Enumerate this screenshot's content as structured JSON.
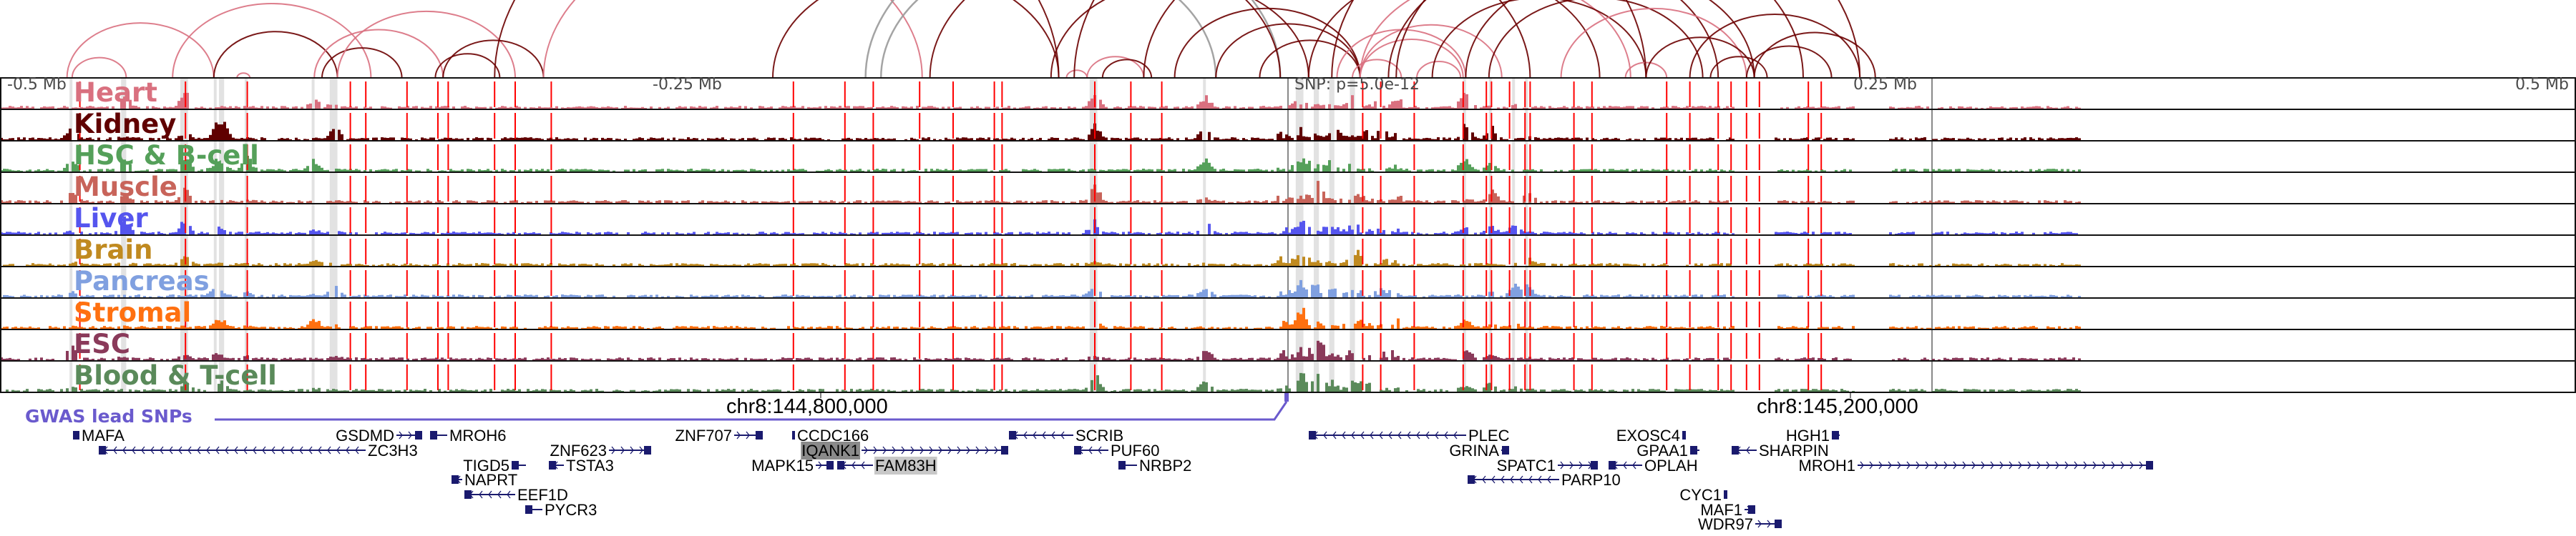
{
  "axis": {
    "ticks": [
      "-0.5 Mb",
      "-0.25 Mb",
      "0.25 Mb",
      "0.5 Mb"
    ],
    "snp_label": "SNP: p=5.0e-12"
  },
  "coordinates": {
    "left": "chr8:144,800,000",
    "right": "chr8:145,200,000"
  },
  "tracks": [
    {
      "label": "Heart",
      "color": "#d9707f"
    },
    {
      "label": "Kidney",
      "color": "#600000"
    },
    {
      "label": "HSC & B-cell",
      "color": "#55a05a"
    },
    {
      "label": "Muscle",
      "color": "#c8645a"
    },
    {
      "label": "Liver",
      "color": "#5555ee"
    },
    {
      "label": "Brain",
      "color": "#c08a20"
    },
    {
      "label": "Pancreas",
      "color": "#80a0e0"
    },
    {
      "label": "Stromal",
      "color": "#ff7010"
    },
    {
      "label": "ESC",
      "color": "#8a3a5a"
    },
    {
      "label": "Blood & T-cell",
      "color": "#5a8a5a"
    }
  ],
  "gwas": {
    "label": "GWAS lead SNPs",
    "color": "#6a5acd"
  },
  "snp_positions_kb": [
    -469,
    -428,
    -404,
    -364,
    -358,
    -342,
    -330,
    -326,
    -308,
    -300,
    -286,
    -192,
    -172,
    -161,
    -143,
    -130,
    -114,
    -111,
    -75,
    -61,
    -49,
    29,
    36,
    49,
    68,
    77,
    79,
    86,
    92,
    94,
    111,
    118,
    147,
    156,
    167,
    172,
    178,
    183,
    202,
    207
  ],
  "highlight_regions_kb": [
    [
      -473,
      -472
    ],
    [
      -453,
      -451
    ],
    [
      -430,
      -427
    ],
    [
      -417,
      -416
    ],
    [
      -415,
      -413
    ],
    [
      -405,
      -404
    ],
    [
      -379,
      -378
    ],
    [
      -372,
      -369
    ],
    [
      -77,
      -74
    ],
    [
      -33,
      -32
    ],
    [
      3,
      6
    ],
    [
      10,
      12
    ],
    [
      16,
      18
    ],
    [
      24,
      26
    ],
    [
      68,
      69
    ],
    [
      78,
      79
    ],
    [
      87,
      88
    ],
    [
      92,
      93
    ]
  ],
  "loops_kb": [
    [
      -472,
      -451,
      "h"
    ],
    [
      -474,
      -417,
      "h"
    ],
    [
      -433,
      -356,
      "h"
    ],
    [
      -417,
      -369,
      "k"
    ],
    [
      -408,
      -403,
      "h"
    ],
    [
      -378,
      -328,
      "h"
    ],
    [
      -375,
      -344,
      "k"
    ],
    [
      -369,
      -300,
      "h"
    ],
    [
      -331,
      -306,
      "k"
    ],
    [
      -328,
      -289,
      "k"
    ],
    [
      -308,
      -89,
      "k"
    ],
    [
      -289,
      -142,
      "h"
    ],
    [
      -200,
      -89,
      "k"
    ],
    [
      -164,
      -3,
      "g"
    ],
    [
      -158,
      -28,
      "g"
    ],
    [
      -139,
      -3,
      "k"
    ],
    [
      -92,
      8,
      "k"
    ],
    [
      -86,
      -78,
      "h"
    ],
    [
      -78,
      -56,
      "h"
    ],
    [
      -72,
      -53,
      "k"
    ],
    [
      -56,
      94,
      "k"
    ],
    [
      -28,
      28,
      "k"
    ],
    [
      -44,
      28,
      "k"
    ],
    [
      -11,
      28,
      "k"
    ],
    [
      8,
      121,
      "k"
    ],
    [
      28,
      83,
      "h"
    ],
    [
      28,
      68,
      "h"
    ],
    [
      28,
      133,
      "h"
    ],
    [
      19,
      69,
      "h"
    ],
    [
      25,
      44,
      "h"
    ],
    [
      39,
      167,
      "k"
    ],
    [
      42,
      200,
      "k"
    ],
    [
      50,
      67,
      "h"
    ],
    [
      56,
      139,
      "k"
    ],
    [
      69,
      181,
      "k"
    ],
    [
      78,
      161,
      "k"
    ],
    [
      106,
      178,
      "h"
    ],
    [
      131,
      147,
      "h"
    ],
    [
      139,
      181,
      "k"
    ],
    [
      156,
      222,
      "k"
    ],
    [
      164,
      186,
      "k"
    ],
    [
      178,
      211,
      "k"
    ],
    [
      181,
      228,
      "k"
    ],
    [
      -83,
      139,
      "k"
    ],
    [
      17,
      222,
      "k"
    ]
  ],
  "loop_colors": {
    "h": "#d9707f",
    "k": "#6b0000",
    "g": "#9a9a9a"
  },
  "genes": [
    {
      "name": "MAFA"
    },
    {
      "name": "GSDMD"
    },
    {
      "name": "MROH6"
    },
    {
      "name": "ZC3H3"
    },
    {
      "name": "ZNF623"
    },
    {
      "name": "TIGD5"
    },
    {
      "name": "TSTA3"
    },
    {
      "name": "NAPRT"
    },
    {
      "name": "EEF1D"
    },
    {
      "name": "PYCR3"
    },
    {
      "name": "ZNF707"
    },
    {
      "name": "CCDC166"
    },
    {
      "name": "IQANK1"
    },
    {
      "name": "SCRIB"
    },
    {
      "name": "PUF60"
    },
    {
      "name": "MAPK15"
    },
    {
      "name": "FAM83H"
    },
    {
      "name": "NRBP2"
    },
    {
      "name": "PLEC"
    },
    {
      "name": "GRINA"
    },
    {
      "name": "SPATC1"
    },
    {
      "name": "OPLAH"
    },
    {
      "name": "PARP10"
    },
    {
      "name": "EXOSC4"
    },
    {
      "name": "GPAA1"
    },
    {
      "name": "HGH1"
    },
    {
      "name": "SHARPIN"
    },
    {
      "name": "MROH1"
    },
    {
      "name": "CYC1"
    },
    {
      "name": "MAF1"
    },
    {
      "name": "WDR97"
    }
  ]
}
